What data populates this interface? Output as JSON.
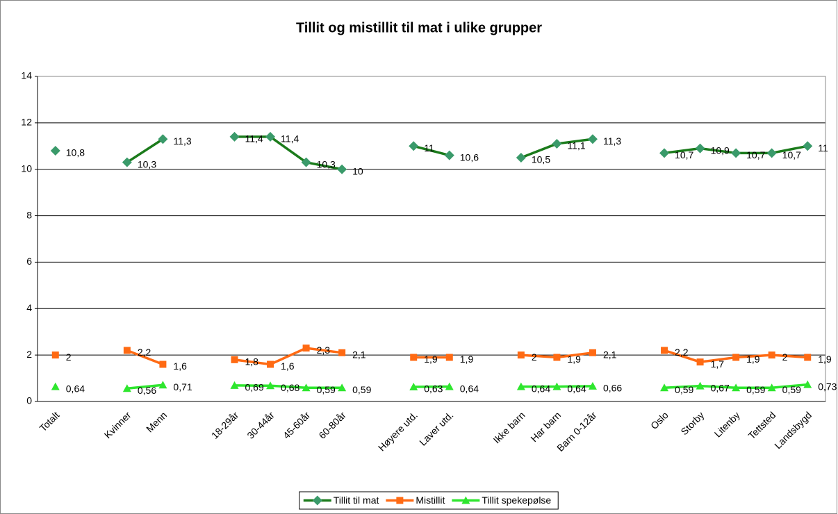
{
  "chart_data": {
    "type": "line",
    "title": "Tillit og mistillit til mat i ulike grupper",
    "categories": [
      "Totalt",
      null,
      "Kvinner",
      "Menn",
      null,
      "18-29år",
      "30-44år",
      "45-60år",
      "60-80år",
      null,
      "Høyere utd.",
      "Laver utd.",
      null,
      "Ikke barn",
      "Har barn",
      "Barn 0-12år",
      null,
      "Oslo",
      "Storby",
      "Litenby",
      "Tettsted",
      "Landsbygd"
    ],
    "series": [
      {
        "name": "Tillit til mat",
        "color": "#1b7b1b",
        "marker_color": "#3a9a6a",
        "marker": "diamond",
        "values": [
          10.8,
          null,
          10.3,
          11.3,
          null,
          11.4,
          11.4,
          10.3,
          10,
          null,
          11,
          10.6,
          null,
          10.5,
          11.1,
          11.3,
          null,
          10.7,
          10.9,
          10.7,
          10.7,
          11
        ],
        "value_labels": [
          "10,8",
          null,
          "10,3",
          "11,3",
          null,
          "11,4",
          "11,4",
          "10,3",
          "10",
          null,
          "11",
          "10,6",
          null,
          "10,5",
          "11,1",
          "11,3",
          null,
          "10,7",
          "10,9",
          "10,7",
          "10,7",
          "11"
        ]
      },
      {
        "name": "Mistillit",
        "color": "#ff6a13",
        "marker_color": "#ff6a13",
        "marker": "square",
        "values": [
          2,
          null,
          2.2,
          1.6,
          null,
          1.8,
          1.6,
          2.3,
          2.1,
          null,
          1.9,
          1.9,
          null,
          2,
          1.9,
          2.1,
          null,
          2.2,
          1.7,
          1.9,
          2,
          1.9
        ],
        "value_labels": [
          "2",
          null,
          "2,2",
          "1,6",
          null,
          "1,8",
          "1,6",
          "2,3",
          "2,1",
          null,
          "1,9",
          "1,9",
          null,
          "2",
          "1,9",
          "2,1",
          null,
          "2,2",
          "1,7",
          "1,9",
          "2",
          "1,9"
        ]
      },
      {
        "name": "Tillit spekepølse",
        "color": "#2ee62e",
        "marker_color": "#2ee62e",
        "marker": "triangle",
        "values": [
          0.64,
          null,
          0.56,
          0.71,
          null,
          0.69,
          0.68,
          0.59,
          0.59,
          null,
          0.63,
          0.64,
          null,
          0.64,
          0.64,
          0.66,
          null,
          0.59,
          0.67,
          0.59,
          0.59,
          0.73
        ],
        "value_labels": [
          "0,64",
          null,
          "0,56",
          "0,71",
          null,
          "0,69",
          "0,68",
          "0,59",
          "0,59",
          null,
          "0,63",
          "0,64",
          null,
          "0,64",
          "0,64",
          "0,66",
          null,
          "0,59",
          "0,67",
          "0,59",
          "0,59",
          "0,73"
        ]
      }
    ],
    "ylim": [
      0,
      14
    ],
    "yticks": [
      0,
      2,
      4,
      6,
      8,
      10,
      12,
      14
    ],
    "grid": true,
    "legend": "bottom"
  }
}
